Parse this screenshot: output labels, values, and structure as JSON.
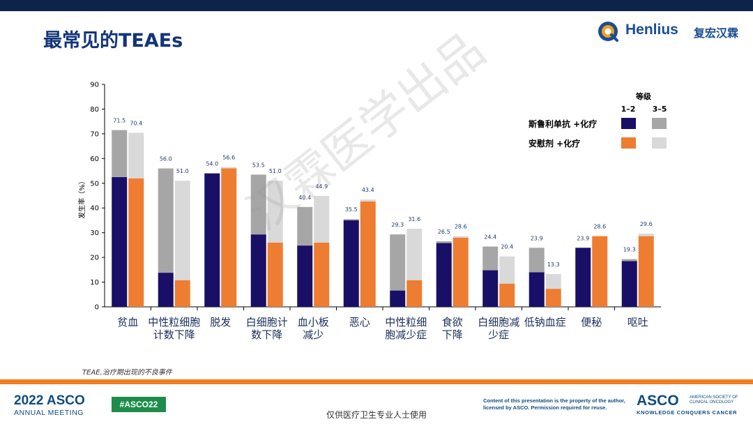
{
  "slide": {
    "title": "最常见的TEAEs",
    "watermark": "汉霖医学出品",
    "footnote": "TEAE,治疗期出现的不良事件",
    "notice": "仅供医疗卫生专业人士使用"
  },
  "brand": {
    "logo_en": "Henlius",
    "logo_cn": "复宏汉霖",
    "meeting_year": "2022 ASCO",
    "meeting_sub": "ANNUAL MEETING",
    "hashtag": "#ASCO22",
    "license_text": "Content of this presentation is the property of the author, licensed by ASCO. Permission required for reuse.",
    "asco_word": "ASCO",
    "asco_society": "AMERICAN SOCIETY OF CLINICAL ONCOLOGY",
    "asco_tagline": "KNOWLEDGE CONQUERS CANCER"
  },
  "colors": {
    "navy": "#1a0f66",
    "grey": "#a6a6a6",
    "orange": "#ee7d31",
    "light": "#d9d9d9",
    "title": "#12357a"
  },
  "chart_data": {
    "type": "bar",
    "title": "最常见的TEAEs",
    "ylabel": "发生率（%）",
    "ylim": [
      0,
      90
    ],
    "yticks": [
      0,
      10,
      20,
      30,
      40,
      50,
      60,
      70,
      80,
      90
    ],
    "legend": {
      "header": "等级",
      "grade_low": "1–2",
      "grade_high": "3–5",
      "placement": "top-right",
      "arms": [
        "斯鲁利单抗 +化疗",
        "安慰剂 +化疗"
      ]
    },
    "categories": [
      [
        "贫血"
      ],
      [
        "中性粒细胞",
        "计数下降"
      ],
      [
        "脱发"
      ],
      [
        "白细胞计",
        "数下降"
      ],
      [
        "血小板",
        "减少"
      ],
      [
        "恶心"
      ],
      [
        "中性粒细",
        "胞减少症"
      ],
      [
        "食欲",
        "下降"
      ],
      [
        "白细胞减",
        "少症"
      ],
      [
        "低钠血症"
      ],
      [
        "便秘"
      ],
      [
        "呕吐"
      ]
    ],
    "series": [
      {
        "name": "斯鲁利单抗 +化疗",
        "total": [
          71.5,
          56.0,
          54.0,
          53.5,
          40.4,
          35.5,
          29.3,
          26.5,
          24.4,
          23.9,
          23.9,
          19.3
        ],
        "grade_1_2": [
          52.5,
          13.8,
          54.0,
          29.3,
          24.8,
          35.0,
          6.6,
          25.8,
          14.8,
          14.0,
          23.9,
          18.5
        ],
        "grade_3_5": [
          19.0,
          42.2,
          0.0,
          24.2,
          15.6,
          0.5,
          22.7,
          0.7,
          9.6,
          9.9,
          0.0,
          0.8
        ],
        "total_labels": [
          "71.5",
          "56.0",
          "54.0",
          "53.5",
          "40.4",
          "35.5",
          "29.3",
          "26.5",
          "24.4",
          "23.9",
          "23.9",
          "19.3"
        ]
      },
      {
        "name": "安慰剂 +化疗",
        "total": [
          70.4,
          51.0,
          56.6,
          51.0,
          44.9,
          43.4,
          31.6,
          28.6,
          20.4,
          13.3,
          28.6,
          29.6
        ],
        "grade_1_2": [
          52.0,
          10.8,
          56.0,
          26.0,
          26.0,
          42.6,
          10.8,
          28.0,
          9.4,
          7.3,
          28.6,
          28.6
        ],
        "grade_3_5": [
          18.4,
          40.2,
          0.6,
          25.0,
          18.9,
          0.8,
          20.8,
          0.6,
          11.0,
          6.0,
          0.0,
          1.0
        ],
        "total_labels": [
          "70.4",
          "51.0",
          "56.6",
          "51.0",
          "44.9",
          "43.4",
          "31.6",
          "28.6",
          "20.4",
          "13.3",
          "28.6",
          "29.6"
        ]
      }
    ]
  }
}
